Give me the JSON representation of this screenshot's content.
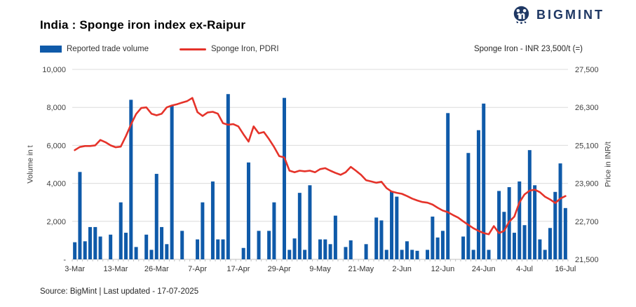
{
  "header": {
    "title": "India : Sponge iron index ex-Raipur",
    "brand": "BIGMINT",
    "brand_color": "#1F3864"
  },
  "legend": {
    "volume_label": "Reported trade volume",
    "price_label": "Sponge Iron, PDRI"
  },
  "annotation": "Sponge Iron - INR 23,500/t (=)",
  "footer": {
    "source": "Source: BigMint | Last updated - 17-07-2025"
  },
  "colors": {
    "bar": "#0F5AA9",
    "line": "#E5332A",
    "grid": "#DCDCDC",
    "axis": "#C2C2C2",
    "tick_text": "#404040"
  },
  "chart_data": {
    "type": "bar+line",
    "title": "India : Sponge iron index ex-Raipur",
    "ylabel_left": "Volume in t",
    "ylabel_right": "Price in INR/t",
    "yleft_ticks": [
      "10,000",
      "8,000",
      "6,000",
      "4,000",
      "2,000",
      "-"
    ],
    "yleft_tick_values": [
      10000,
      8000,
      6000,
      4000,
      2000,
      0
    ],
    "yleft_range": [
      0,
      10000
    ],
    "yright_ticks": [
      "27,500",
      "26,300",
      "25,100",
      "23,900",
      "22,700",
      "21,500"
    ],
    "yright_tick_values": [
      27500,
      26300,
      25100,
      23900,
      22700,
      21500
    ],
    "yright_range": [
      21500,
      27500
    ],
    "x_tick_labels": [
      "3-Mar",
      "13-Mar",
      "26-Mar",
      "7-Apr",
      "17-Apr",
      "29-Apr",
      "9-May",
      "21-May",
      "2-Jun",
      "12-Jun",
      "24-Jun",
      "4-Jul",
      "16-Jul"
    ],
    "tick_every": 8,
    "grid": true,
    "legend_position": "top-left",
    "series": [
      {
        "name": "Reported trade volume",
        "type": "bar",
        "axis": "left",
        "values": [
          900,
          4600,
          950,
          1700,
          1700,
          1200,
          0,
          1300,
          0,
          3000,
          1400,
          8400,
          650,
          0,
          1300,
          500,
          4500,
          1700,
          800,
          8100,
          0,
          1500,
          0,
          0,
          1050,
          3000,
          0,
          4100,
          1050,
          1050,
          8700,
          0,
          0,
          600,
          5100,
          0,
          1500,
          0,
          1500,
          3000,
          0,
          8500,
          500,
          1100,
          3500,
          500,
          3900,
          0,
          1050,
          1050,
          800,
          2300,
          0,
          650,
          1000,
          0,
          0,
          800,
          0,
          2200,
          2050,
          500,
          3600,
          3300,
          500,
          950,
          500,
          450,
          0,
          500,
          2250,
          1150,
          1500,
          7700,
          0,
          0,
          1200,
          5600,
          500,
          6800,
          8200,
          500,
          0,
          3600,
          2500,
          3800,
          1400,
          4100,
          1800,
          5750,
          3900,
          1050,
          500,
          1650,
          3550,
          5050,
          2700
        ]
      },
      {
        "name": "Sponge Iron, PDRI",
        "type": "line",
        "axis": "right",
        "values": [
          24950,
          25050,
          25080,
          25080,
          25100,
          25270,
          25200,
          25100,
          25040,
          25060,
          25390,
          25760,
          26090,
          26280,
          26300,
          26100,
          26050,
          26100,
          26300,
          26360,
          26400,
          26450,
          26500,
          26600,
          26150,
          26030,
          26140,
          26160,
          26100,
          25800,
          25750,
          25770,
          25700,
          25450,
          25220,
          25700,
          25480,
          25520,
          25300,
          25050,
          24760,
          24720,
          24300,
          24250,
          24300,
          24280,
          24300,
          24250,
          24350,
          24380,
          24300,
          24230,
          24170,
          24250,
          24420,
          24300,
          24170,
          24000,
          23960,
          23920,
          23950,
          23750,
          23640,
          23600,
          23570,
          23500,
          23420,
          23360,
          23310,
          23290,
          23230,
          23130,
          23040,
          22990,
          22900,
          22820,
          22700,
          22590,
          22480,
          22400,
          22330,
          22290,
          22550,
          22330,
          22400,
          22690,
          22850,
          23300,
          23550,
          23670,
          23700,
          23620,
          23480,
          23390,
          23280,
          23420,
          23500
        ]
      }
    ]
  }
}
